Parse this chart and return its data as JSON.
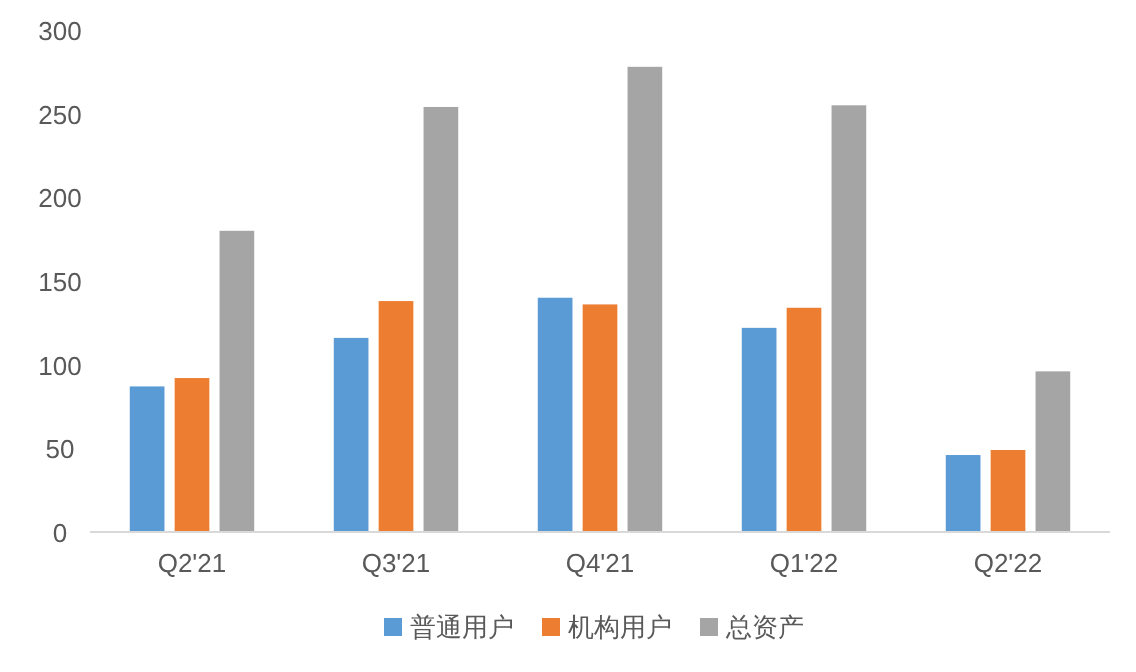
{
  "chart_data": {
    "type": "bar",
    "categories": [
      "Q2'21",
      "Q3'21",
      "Q4'21",
      "Q1'22",
      "Q2'22"
    ],
    "series": [
      {
        "name": "普通用户",
        "color": "#5b9bd5",
        "values": [
          87,
          116,
          140,
          122,
          46
        ]
      },
      {
        "name": "机构用户",
        "color": "#ed7d31",
        "values": [
          92,
          138,
          136,
          134,
          49
        ]
      },
      {
        "name": "总资产",
        "color": "#a5a5a5",
        "values": [
          180,
          254,
          278,
          255,
          96
        ]
      }
    ],
    "ylim": [
      0,
      300
    ],
    "yticks": [
      0,
      50,
      100,
      150,
      200,
      250,
      300
    ],
    "grid": false,
    "legend": "bottom"
  }
}
